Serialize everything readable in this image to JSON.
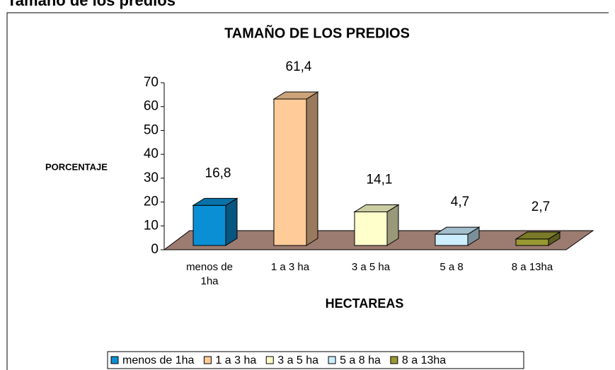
{
  "heading": "Tamaño de los predios",
  "chart_data": {
    "type": "bar3d",
    "title": "TAMAÑO DE LOS PREDIOS",
    "y_label": "PORCENTAJE",
    "x_label": "HECTAREAS",
    "categories": [
      "menos de 1ha",
      "1 a 3 ha",
      "3 a 5 ha",
      "5 a 8",
      "8 a 13ha"
    ],
    "series": [
      {
        "name": "menos de 1ha",
        "color": "#0a8fd4"
      },
      {
        "name": "1 a 3 ha",
        "color": "#ffcc99"
      },
      {
        "name": "3 a 5 ha",
        "color": "#ffffcc"
      },
      {
        "name": "5 a 8 ha",
        "color": "#cceeff"
      },
      {
        "name": "8 a 13ha",
        "color": "#999933"
      }
    ],
    "values": [
      16.8,
      61.4,
      14.1,
      4.7,
      2.7
    ],
    "value_labels": [
      "16,8",
      "61,4",
      "14,1",
      "4,7",
      "2,7"
    ],
    "ylim": [
      0,
      70
    ],
    "yticks": [
      0,
      10,
      20,
      30,
      40,
      50,
      60,
      70
    ],
    "legend": "bottom"
  }
}
